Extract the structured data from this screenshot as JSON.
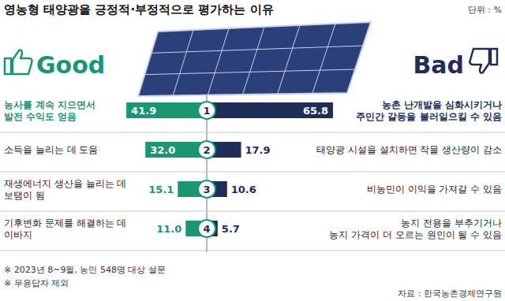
{
  "chart_data": {
    "type": "bar",
    "orientation": "horizontal",
    "data_labels": true,
    "title": "영농형 태양광을 긍정적·부정적으로 평가하는 이유",
    "unit": "단위 : %",
    "categories": [
      "1",
      "2",
      "3",
      "4"
    ],
    "series": [
      {
        "name": "Good",
        "color": "#1a9670",
        "values": [
          41.9,
          32.0,
          15.1,
          11.0
        ],
        "value_labels": [
          "41.9",
          "32.0",
          "15.1",
          "11.0"
        ],
        "reasons": [
          "농사를 계속 지으면서\n발전 수익도 얻음",
          "소득을 늘리는 데 도움",
          "재생에너지 생산을 늘리는 데\n보탬이 됨",
          "기후변화 문제를 해결하는 데\n이바지"
        ]
      },
      {
        "name": "Bad",
        "color": "#1e2d5a",
        "values": [
          65.8,
          17.9,
          10.6,
          5.7
        ],
        "value_labels": [
          "65.8",
          "17.9",
          "10.6",
          "5.7"
        ],
        "reasons": [
          "농촌 난개발을 심화시키거나\n주민간 갈등을 불러일으킬 수 있음",
          "태양광 시설을 설치하면 작물 생산량이 감소",
          "비농민이 이익을 가져갈 수 있음",
          "농지 전용을 부추기거나\n농지 가격이 더 오르는 원인이 될 수 있음"
        ]
      }
    ],
    "notes": [
      "※ 2023년 8~9월, 농민 548명 대상 설문",
      "※ 무응답자 제외"
    ],
    "source": "자료 : 한국농촌경제연구원"
  }
}
